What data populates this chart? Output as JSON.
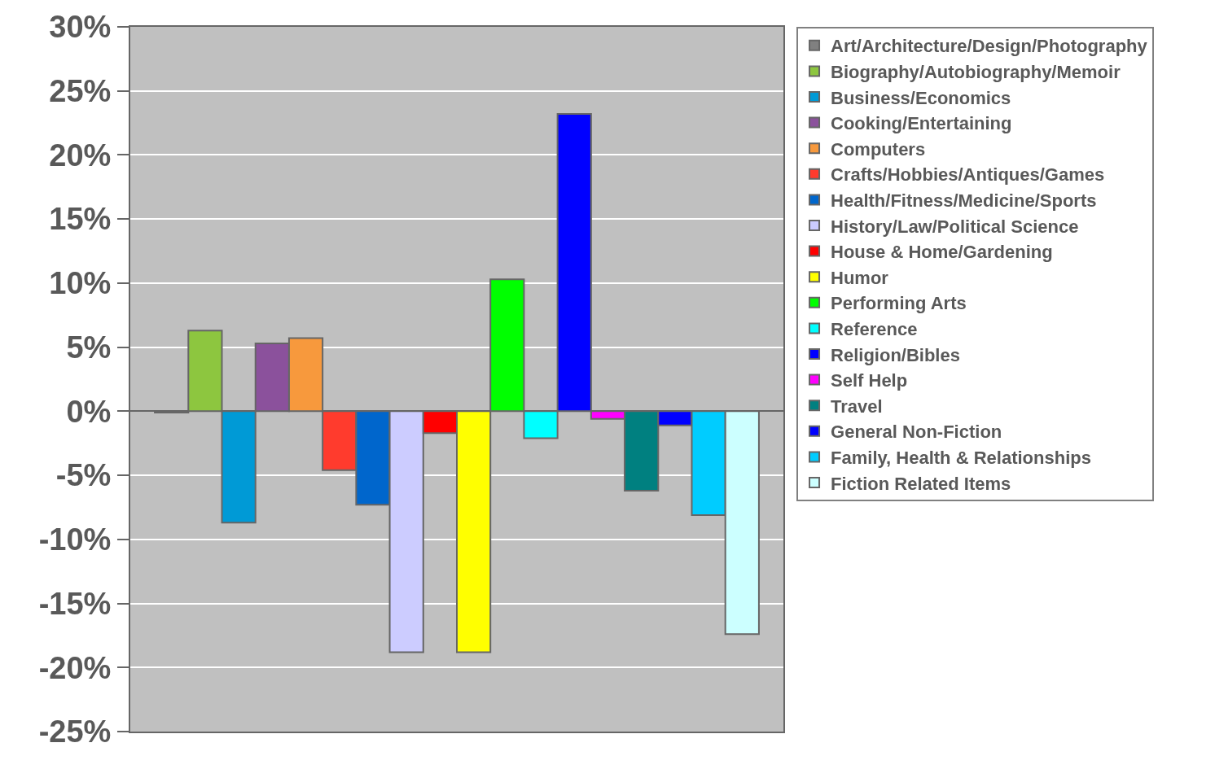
{
  "chart_data": {
    "type": "bar",
    "categories": [
      null
    ],
    "series": [
      {
        "name": "Art/Architecture/Design/Photography",
        "color": "#808080",
        "values": [
          -0.1
        ]
      },
      {
        "name": "Biography/Autobiography/Memoir",
        "color": "#8dc63f",
        "values": [
          6.3
        ]
      },
      {
        "name": "Business/Economics",
        "color": "#009ad6",
        "values": [
          -8.7
        ]
      },
      {
        "name": "Cooking/Entertaining",
        "color": "#8b519c",
        "values": [
          5.3
        ]
      },
      {
        "name": "Computers",
        "color": "#f7993d",
        "values": [
          5.7
        ]
      },
      {
        "name": "Crafts/Hobbies/Antiques/Games",
        "color": "#ff3b2d",
        "values": [
          -4.6
        ]
      },
      {
        "name": "Health/Fitness/Medicine/Sports",
        "color": "#0066cc",
        "values": [
          -7.3
        ]
      },
      {
        "name": "History/Law/Political Science",
        "color": "#ccccff",
        "values": [
          -18.8
        ]
      },
      {
        "name": "House & Home/Gardening",
        "color": "#ff0000",
        "values": [
          -1.7
        ]
      },
      {
        "name": "Humor",
        "color": "#ffff00",
        "values": [
          -18.8
        ]
      },
      {
        "name": "Performing Arts",
        "color": "#00ff00",
        "values": [
          10.3
        ]
      },
      {
        "name": "Reference",
        "color": "#00ffff",
        "values": [
          -2.1
        ]
      },
      {
        "name": "Religion/Bibles",
        "color": "#0000ff",
        "values": [
          23.2
        ]
      },
      {
        "name": "Self Help",
        "color": "#ff00ff",
        "values": [
          -0.6
        ]
      },
      {
        "name": "Travel",
        "color": "#008080",
        "values": [
          -6.2
        ]
      },
      {
        "name": "General Non-Fiction",
        "color": "#0000ff",
        "values": [
          -1.1
        ]
      },
      {
        "name": "Family, Health & Relationships",
        "color": "#00ccff",
        "values": [
          -8.1
        ]
      },
      {
        "name": "Fiction Related Items",
        "color": "#ccffff",
        "values": [
          -17.4
        ]
      }
    ],
    "ylim": [
      -25,
      30
    ],
    "yticks": [
      {
        "value": -25,
        "label": "-25%"
      },
      {
        "value": -20,
        "label": "-20%"
      },
      {
        "value": -15,
        "label": "-15%"
      },
      {
        "value": -10,
        "label": "-10%"
      },
      {
        "value": -5,
        "label": "-5%"
      },
      {
        "value": 0,
        "label": "0%"
      },
      {
        "value": 5,
        "label": "5%"
      },
      {
        "value": 10,
        "label": "10%"
      },
      {
        "value": 15,
        "label": "15%"
      },
      {
        "value": 20,
        "label": "20%"
      },
      {
        "value": 25,
        "label": "25%"
      },
      {
        "value": 30,
        "label": "30%"
      }
    ],
    "grid": "y",
    "legend": "right",
    "tick_labels": "y"
  }
}
